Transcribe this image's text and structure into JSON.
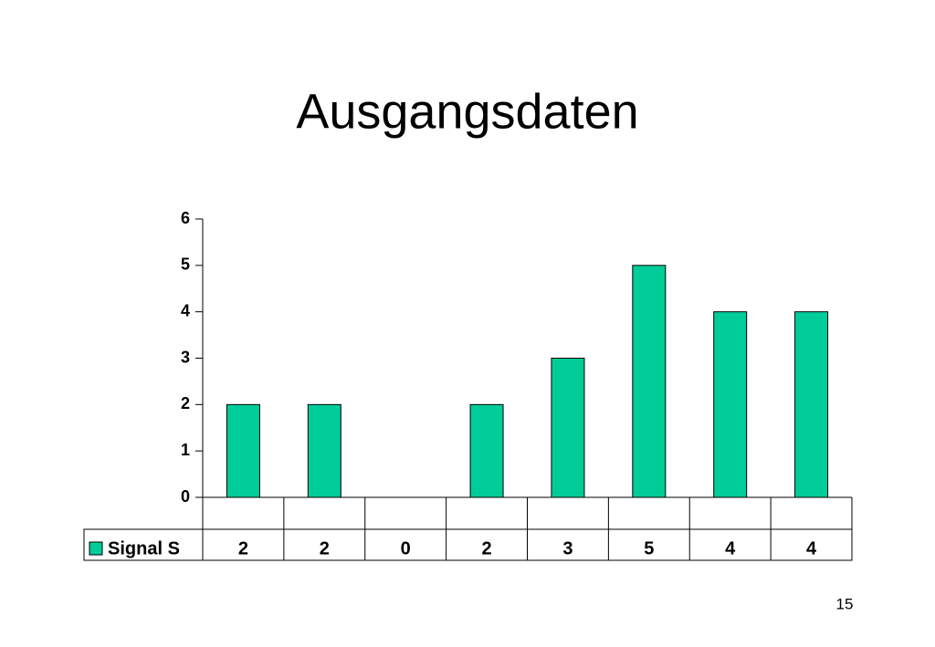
{
  "chart_data": {
    "type": "bar",
    "title": "Ausgangsdaten",
    "categories": [
      null,
      null,
      null,
      null,
      null,
      null,
      null,
      null
    ],
    "series": [
      {
        "name": "Signal S",
        "color": "#00cc99",
        "values": [
          2,
          2,
          0,
          2,
          3,
          5,
          4,
          4
        ]
      }
    ],
    "ylim": [
      0,
      6
    ],
    "yticks": [
      0,
      1,
      2,
      3,
      4,
      5,
      6
    ],
    "grid": false,
    "data_table": true
  },
  "page_number": "15"
}
